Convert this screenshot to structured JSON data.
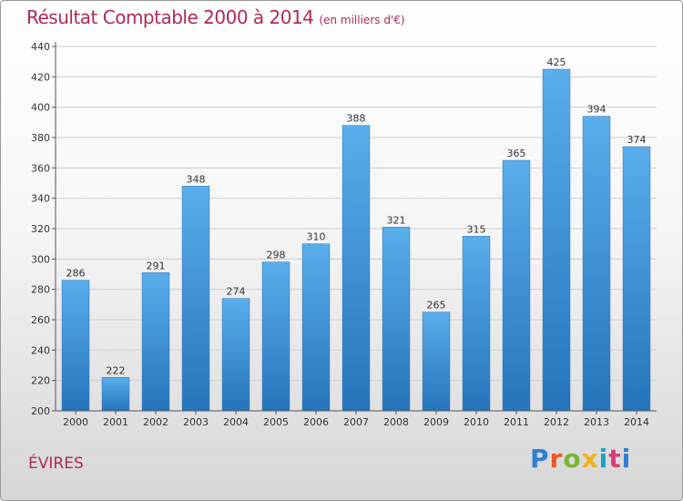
{
  "chart_data": {
    "type": "bar",
    "title": "Résultat Comptable 2000 à 2014",
    "subtitle": "(en milliers d'€)",
    "categories": [
      "2000",
      "2001",
      "2002",
      "2003",
      "2004",
      "2005",
      "2006",
      "2007",
      "2008",
      "2009",
      "2010",
      "2011",
      "2012",
      "2013",
      "2014"
    ],
    "values": [
      286,
      222,
      291,
      348,
      274,
      298,
      310,
      388,
      321,
      265,
      315,
      365,
      425,
      394,
      374
    ],
    "ylim": [
      200,
      440
    ],
    "yticks": [
      200,
      220,
      240,
      260,
      280,
      300,
      320,
      340,
      360,
      380,
      400,
      420,
      440
    ],
    "xlabel": "",
    "ylabel": "",
    "grid": true,
    "bar_color": "#3d8fd6"
  },
  "place_name": "ÉVIRES",
  "logo": {
    "text": "Proxiti"
  }
}
